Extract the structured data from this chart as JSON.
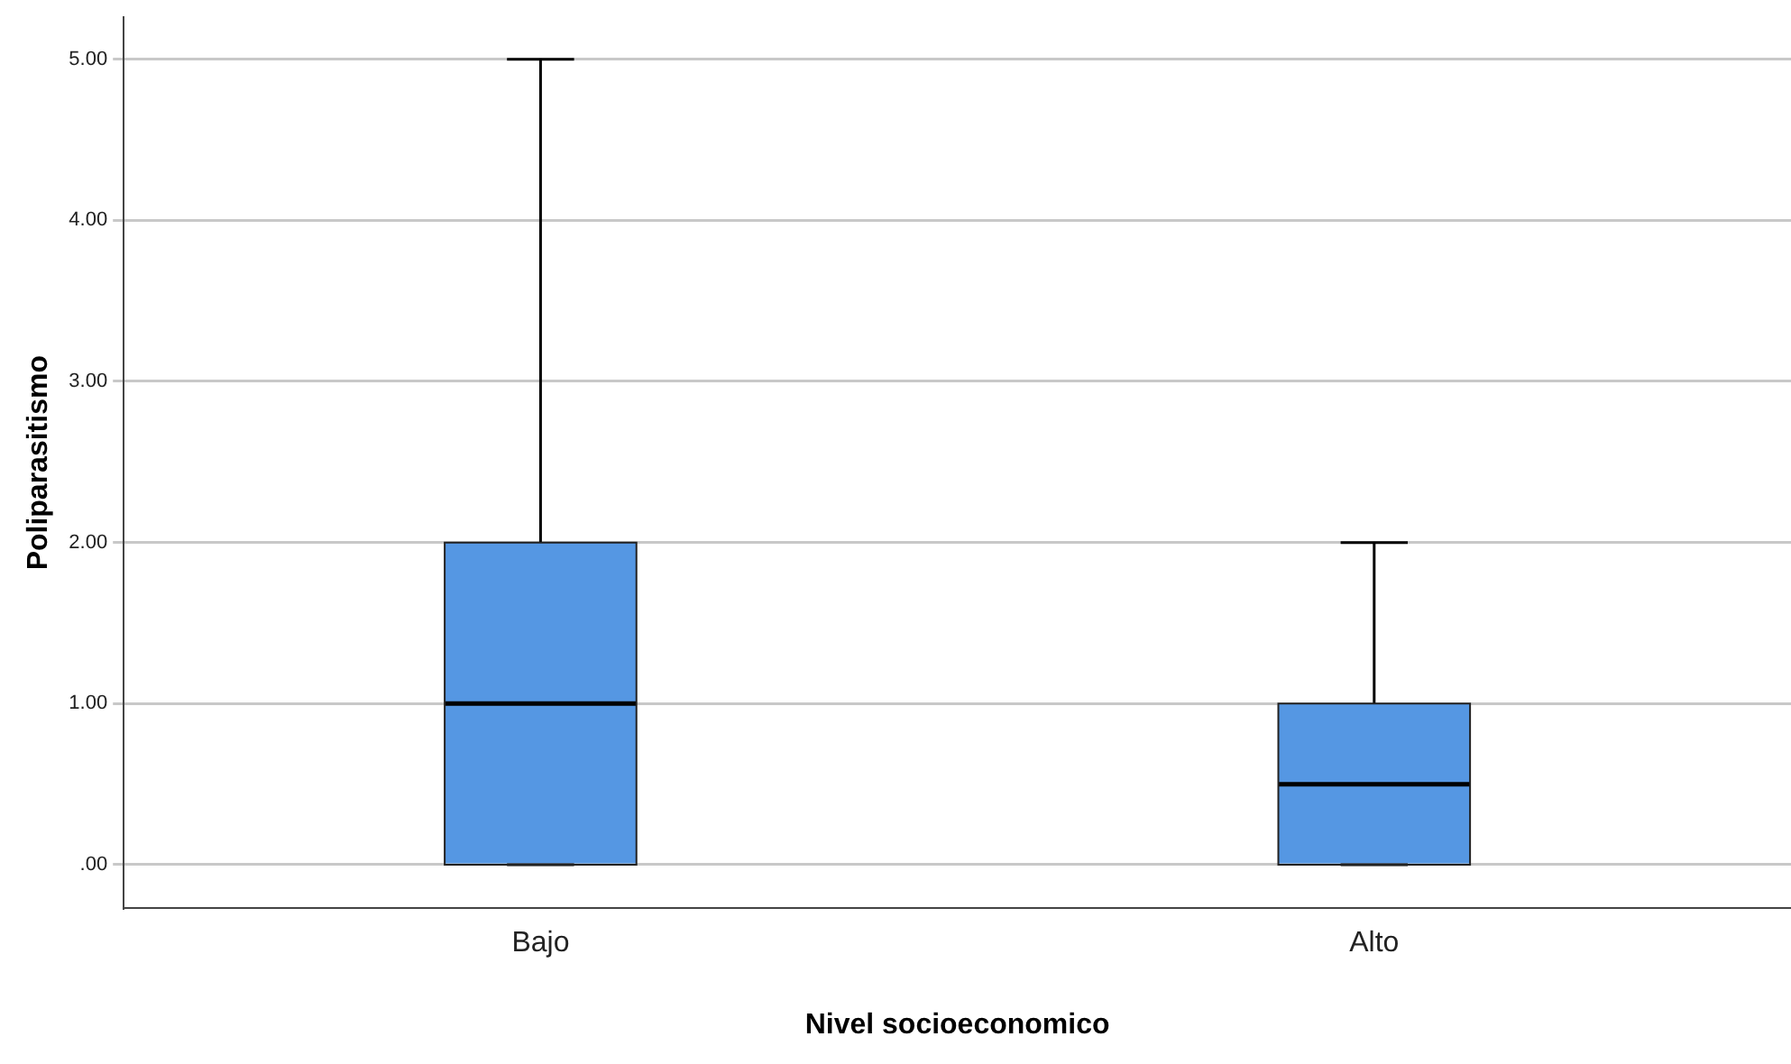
{
  "chart_data": {
    "type": "box",
    "xlabel": "Nivel socioeconomico",
    "ylabel": "Poliparasitismo",
    "categories": [
      "Bajo",
      "Alto"
    ],
    "boxes": [
      {
        "low": 0,
        "q1": 0,
        "median": 1,
        "q3": 2,
        "high": 5
      },
      {
        "low": 0,
        "q1": 0,
        "median": 0.5,
        "q3": 1,
        "high": 2
      }
    ],
    "color": "#5597e3",
    "ylim": [
      -0.27,
      5.26
    ],
    "yticks": [
      {
        "value": 0,
        "label": ".00"
      },
      {
        "value": 1,
        "label": "1.00"
      },
      {
        "value": 2,
        "label": "2.00"
      },
      {
        "value": 3,
        "label": "3.00"
      },
      {
        "value": 4,
        "label": "4.00"
      },
      {
        "value": 5,
        "label": "5.00"
      }
    ],
    "grid": "y"
  }
}
